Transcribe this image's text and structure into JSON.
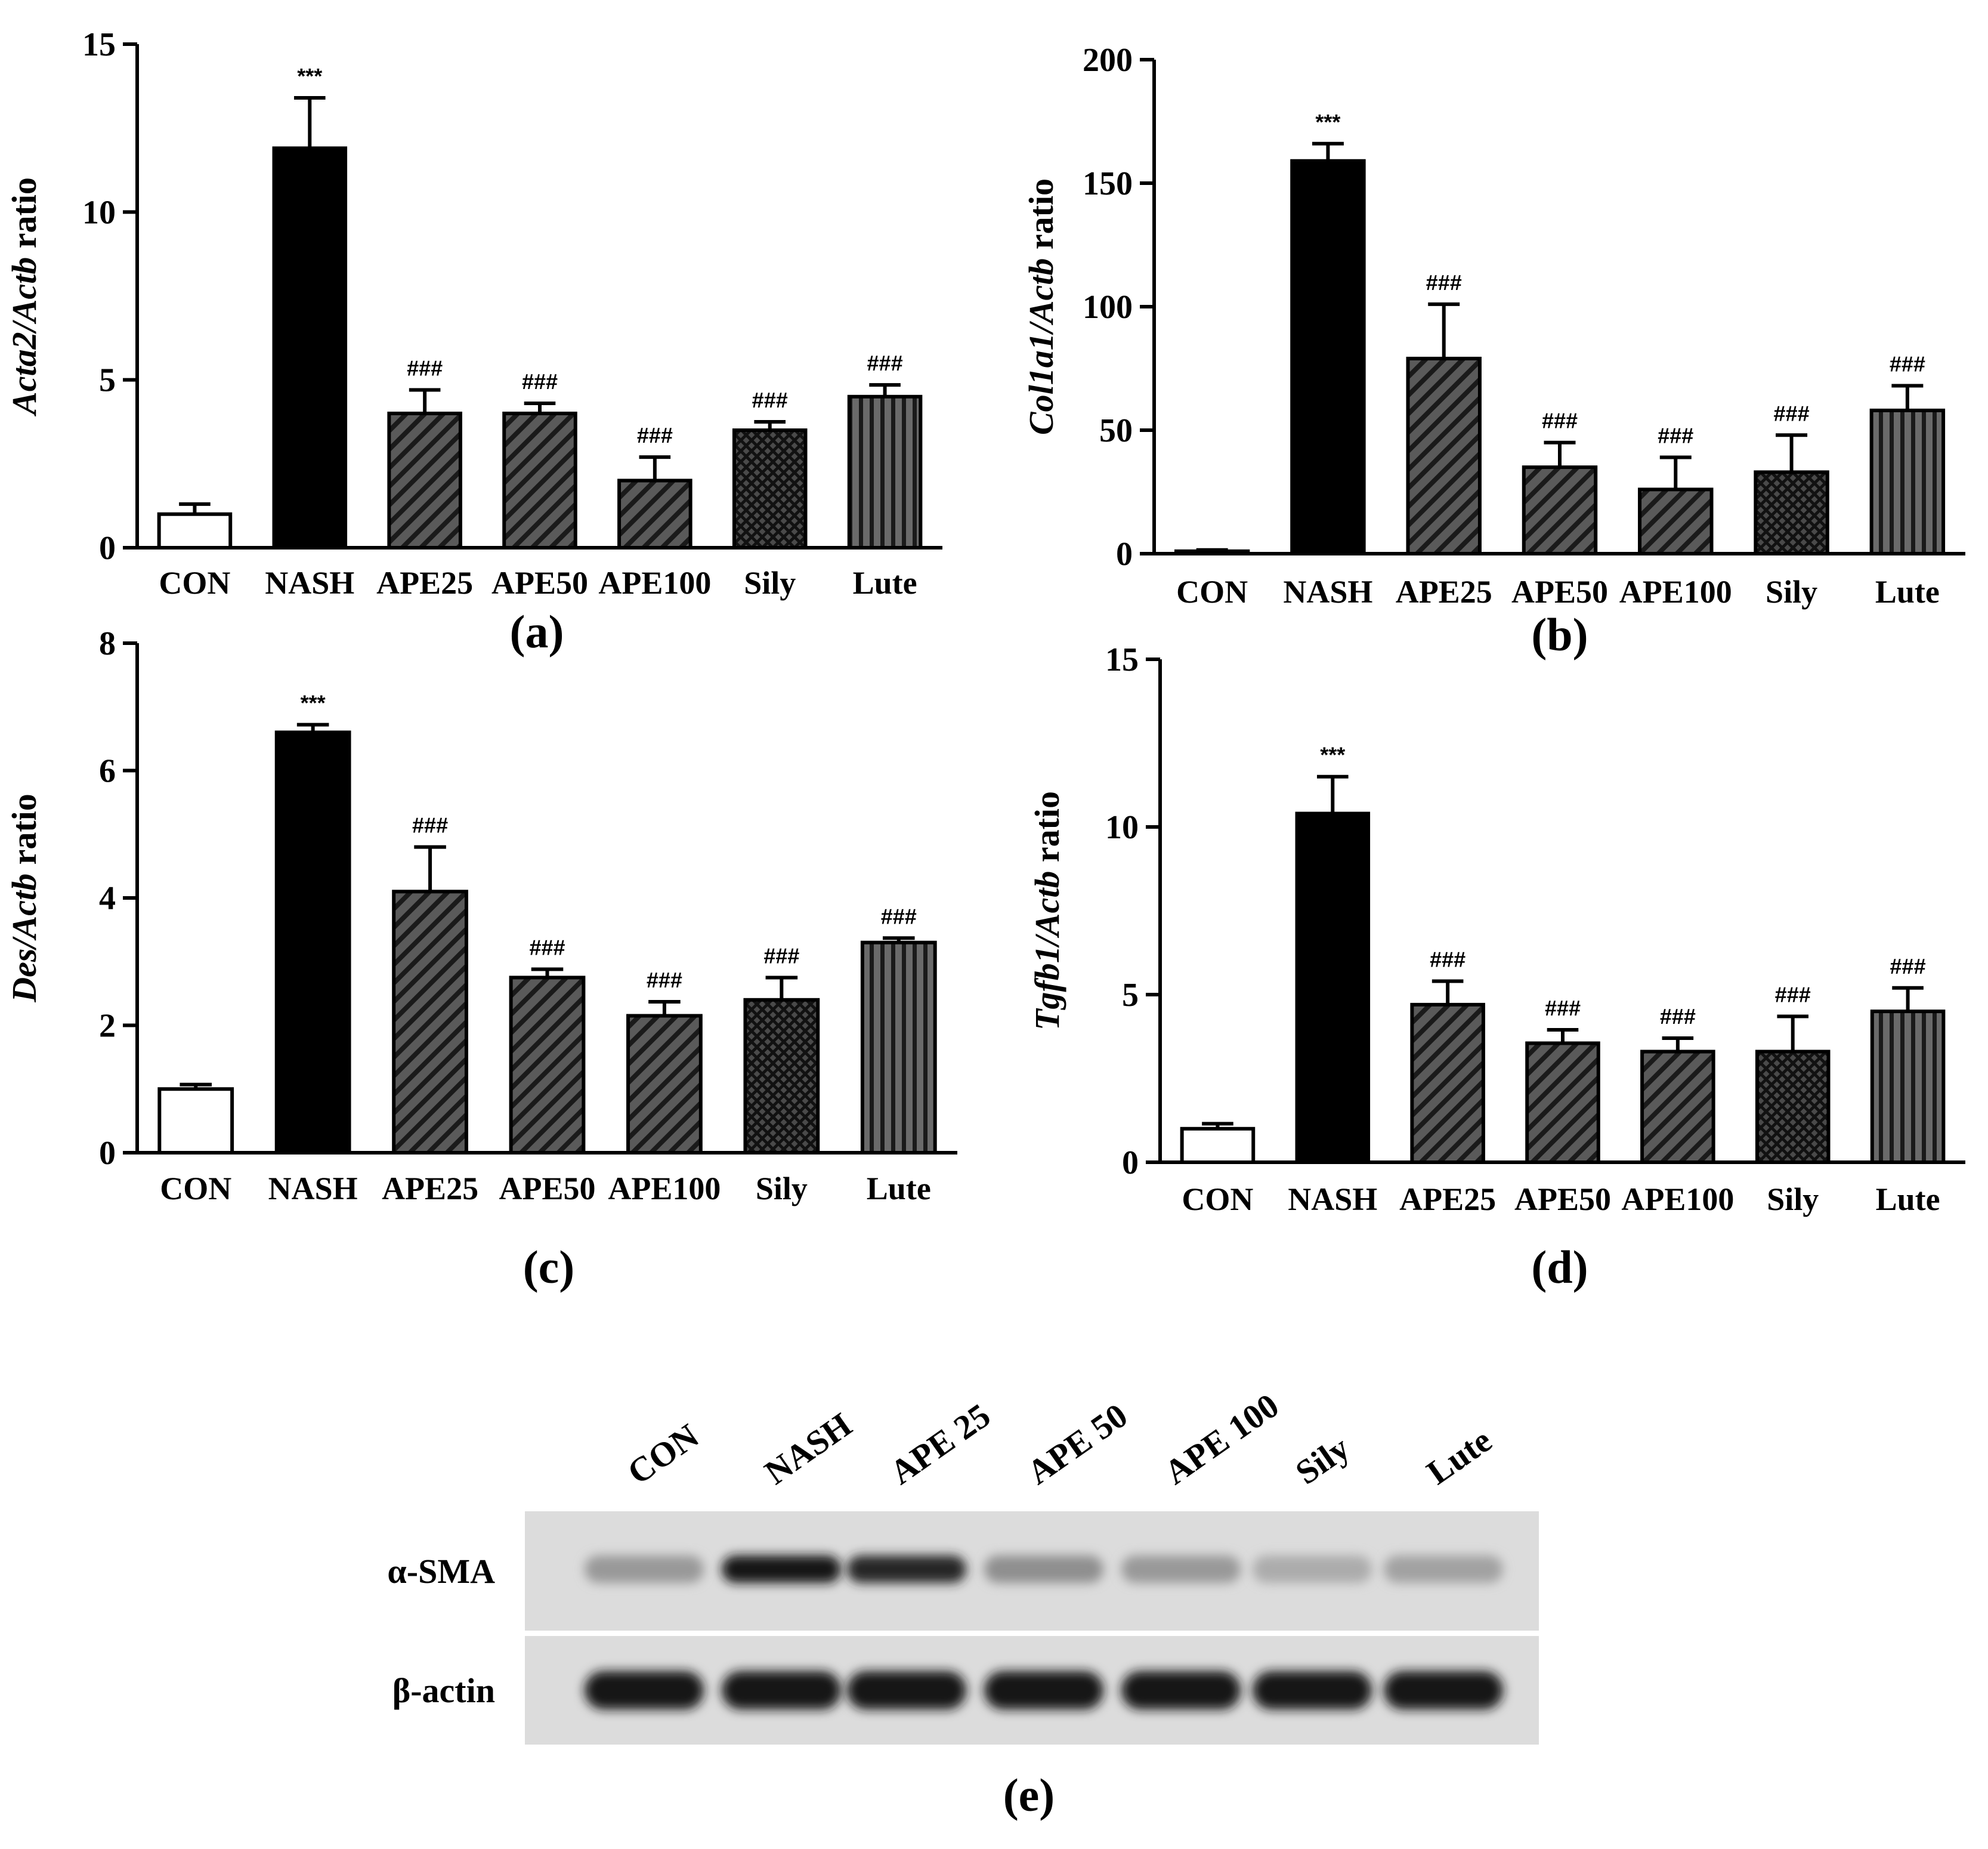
{
  "figure": {
    "background": "#ffffff"
  },
  "chart_data": [
    {
      "panel": "(a)",
      "type": "bar",
      "categories": [
        "CON",
        "NASH",
        "APE25",
        "APE50",
        "APE100",
        "Sily",
        "Lute"
      ],
      "values": [
        1.0,
        11.9,
        4.0,
        4.0,
        2.0,
        3.5,
        4.5
      ],
      "errors": [
        0.3,
        1.5,
        0.7,
        0.3,
        0.7,
        0.25,
        0.35
      ],
      "significance": [
        "",
        "***",
        "###",
        "###",
        "###",
        "###",
        "###"
      ],
      "ylabel_gene": "Acta2/Actb",
      "ylabel_suffix": "ratio",
      "ylim": [
        0,
        15
      ],
      "yticks": [
        0,
        5,
        10,
        15
      ],
      "yticklabels": [
        "0",
        "5",
        "10",
        "15"
      ]
    },
    {
      "panel": "(b)",
      "type": "bar",
      "categories": [
        "CON",
        "NASH",
        "APE25",
        "APE50",
        "APE100",
        "Sily",
        "Lute"
      ],
      "values": [
        1.0,
        159,
        79,
        35,
        26,
        33,
        58
      ],
      "errors": [
        0.5,
        7,
        22,
        10,
        13,
        15,
        10
      ],
      "significance": [
        "",
        "***",
        "###",
        "###",
        "###",
        "###",
        "###"
      ],
      "ylabel_gene": "Col1a1/Actb",
      "ylabel_suffix": "ratio",
      "ylim": [
        0,
        200
      ],
      "yticks": [
        0,
        50,
        100,
        150,
        200
      ],
      "yticklabels": [
        "0",
        "50",
        "100",
        "150",
        "200"
      ]
    },
    {
      "panel": "(c)",
      "type": "bar",
      "categories": [
        "CON",
        "NASH",
        "APE25",
        "APE50",
        "APE100",
        "Sily",
        "Lute"
      ],
      "values": [
        1.0,
        6.6,
        4.1,
        2.75,
        2.15,
        2.4,
        3.3
      ],
      "errors": [
        0.07,
        0.12,
        0.7,
        0.13,
        0.22,
        0.35,
        0.07
      ],
      "significance": [
        "",
        "***",
        "###",
        "###",
        "###",
        "###",
        "###"
      ],
      "ylabel_gene": "Des/Actb",
      "ylabel_suffix": "ratio",
      "ylim": [
        0,
        8
      ],
      "yticks": [
        0,
        2,
        4,
        6,
        8
      ],
      "yticklabels": [
        "0",
        "2",
        "4",
        "6",
        "8"
      ]
    },
    {
      "panel": "(d)",
      "type": "bar",
      "categories": [
        "CON",
        "NASH",
        "APE25",
        "APE50",
        "APE100",
        "Sily",
        "Lute"
      ],
      "values": [
        1.0,
        10.4,
        4.7,
        3.55,
        3.3,
        3.3,
        4.5
      ],
      "errors": [
        0.15,
        1.1,
        0.7,
        0.4,
        0.4,
        1.05,
        0.7
      ],
      "significance": [
        "",
        "***",
        "###",
        "###",
        "###",
        "###",
        "###"
      ],
      "ylabel_gene": "Tgfb1/Actb",
      "ylabel_suffix": "ratio",
      "ylim": [
        0,
        15
      ],
      "yticks": [
        0,
        5,
        10,
        15
      ],
      "yticklabels": [
        "0",
        "5",
        "10",
        "15"
      ]
    }
  ],
  "bar_styles": [
    "white",
    "black",
    "diag-dense",
    "diag-dense",
    "diag-dense",
    "crosshatch",
    "vertical"
  ],
  "colors": {
    "ink": "#000000",
    "bar_gray": "#555555",
    "hatch": "#1a1a1a",
    "blot_bg": "#dcdcdc"
  },
  "western_blot": {
    "panel": "(e)",
    "lanes": [
      "CON",
      "NASH",
      "APE 25",
      "APE 50",
      "APE 100",
      "Sily",
      "Lute"
    ],
    "rows": [
      {
        "label": "α-SMA",
        "intensities": [
          0.25,
          0.95,
          0.85,
          0.3,
          0.25,
          0.15,
          0.2
        ]
      },
      {
        "label": "β-actin",
        "intensities": [
          0.95,
          0.95,
          0.95,
          0.95,
          0.95,
          0.95,
          0.95
        ]
      }
    ]
  }
}
